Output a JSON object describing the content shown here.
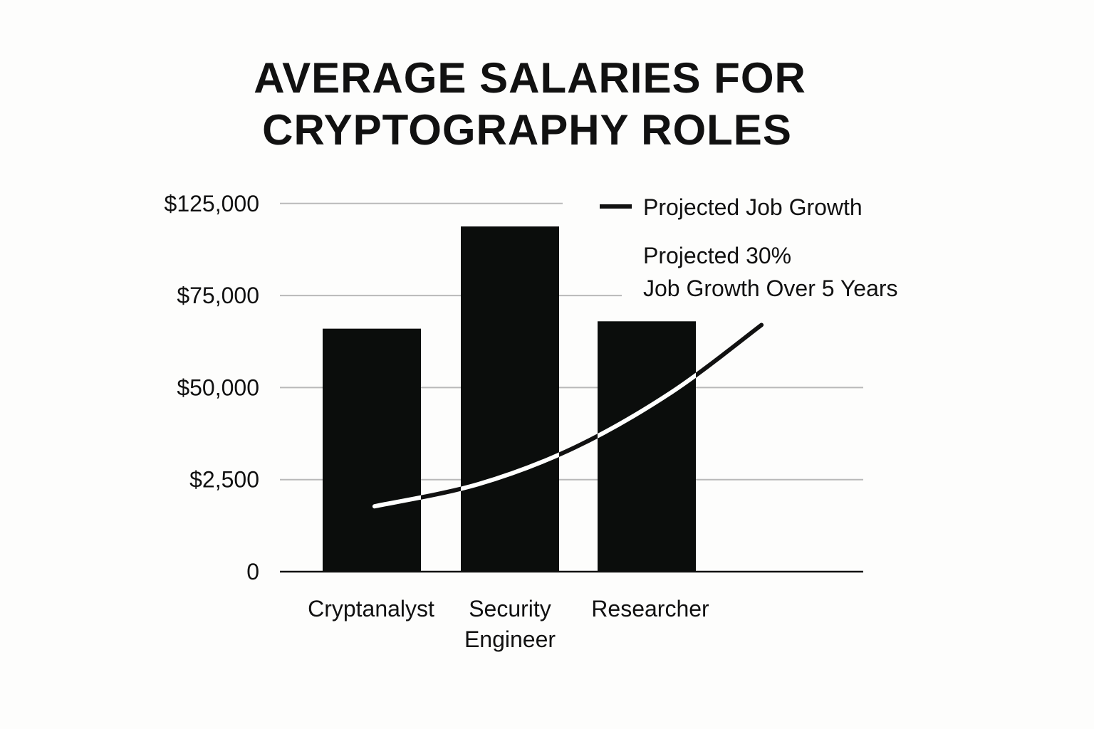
{
  "chart_data": {
    "type": "bar",
    "title_lines": [
      "AVERAGE SALARIES FOR",
      "CRYPTOGRAPHY ROLES"
    ],
    "categories": [
      [
        "Cryptanalyst"
      ],
      [
        "Security",
        "Engineer"
      ],
      [
        "Researcher"
      ]
    ],
    "y_ticks": [
      "0",
      "$2,500",
      "$50,000",
      "$75,000",
      "$125,000"
    ],
    "bar_levels": [
      2.64,
      3.75,
      2.72
    ],
    "series": [
      {
        "name": "Projected Job Growth",
        "type": "line",
        "points_level": [
          [
            0.35,
            0.71
          ],
          [
            1.1,
            0.95
          ],
          [
            1.8,
            1.35
          ],
          [
            2.5,
            1.95
          ],
          [
            3.15,
            2.68
          ]
        ]
      }
    ],
    "legend": {
      "label": "Projected Job Growth",
      "position": "top-right"
    },
    "annotation_lines": [
      "Projected 30%",
      "Job Growth Over 5 Years"
    ],
    "grid": true,
    "colors": {
      "bar": "#0b0d0c",
      "grid": "#b9b9b9",
      "line_dark": "#111111",
      "line_light": "#ffffff",
      "axis": "#111111"
    }
  }
}
